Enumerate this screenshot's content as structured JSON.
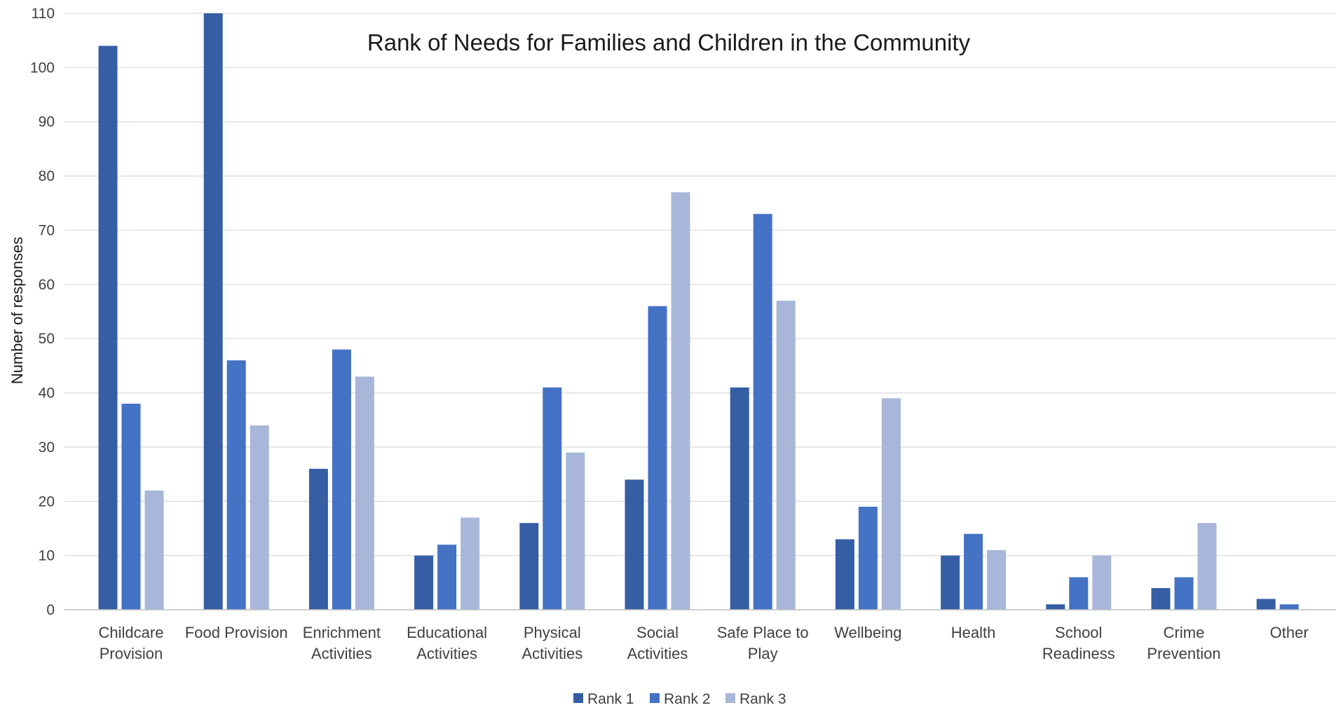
{
  "chart_data": {
    "type": "bar",
    "title": "Rank of Needs for Families and Children in the Community",
    "ylabel": "Number of responses",
    "xlabel": "",
    "ylim": [
      0,
      110
    ],
    "yticks": [
      0,
      10,
      20,
      30,
      40,
      50,
      60,
      70,
      80,
      90,
      100,
      110
    ],
    "grid": true,
    "legend_position": "bottom-center",
    "categories": [
      [
        "Childcare",
        "Provision"
      ],
      [
        "Food Provision"
      ],
      [
        "Enrichment",
        "Activities"
      ],
      [
        "Educational",
        "Activities"
      ],
      [
        "Physical",
        "Activities"
      ],
      [
        "Social",
        "Activities"
      ],
      [
        "Safe Place to",
        "Play"
      ],
      [
        "Wellbeing"
      ],
      [
        "Health"
      ],
      [
        "School",
        "Readiness"
      ],
      [
        "Crime",
        "Prevention"
      ],
      [
        "Other"
      ]
    ],
    "series": [
      {
        "name": "Rank 1",
        "color": "#355ea4",
        "values": [
          104,
          110,
          26,
          10,
          16,
          24,
          41,
          13,
          10,
          1,
          4,
          2
        ]
      },
      {
        "name": "Rank 2",
        "color": "#4472c4",
        "values": [
          38,
          46,
          48,
          12,
          41,
          56,
          73,
          19,
          14,
          6,
          6,
          1
        ]
      },
      {
        "name": "Rank 3",
        "color": "#a8b6da",
        "values": [
          22,
          34,
          43,
          17,
          29,
          77,
          57,
          39,
          11,
          10,
          16,
          0
        ]
      }
    ],
    "colors": {
      "grid": "#d9d9d9",
      "axis": "#bfbfbf",
      "text": "#404040"
    }
  }
}
